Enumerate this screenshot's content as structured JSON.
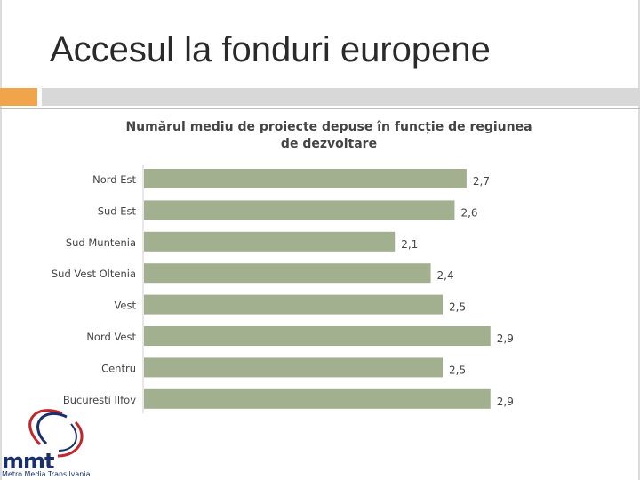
{
  "slide": {
    "title": "Accesul la fonduri europene"
  },
  "colors": {
    "accent_orange": "#f0a54a",
    "accent_gray": "#d8d8d8",
    "bar": "#a2b08f",
    "logo_red": "#c0272d",
    "logo_blue": "#1a2f6d"
  },
  "logo": {
    "name": "mmt",
    "subtitle": "Metro Media Transilvania"
  },
  "chart_data": {
    "type": "bar",
    "orientation": "horizontal",
    "title": "Numărul mediu de proiecte depuse în funcție de regiunea de dezvoltare",
    "categories": [
      "Nord Est",
      "Sud Est",
      "Sud Muntenia",
      "Sud Vest Oltenia",
      "Vest",
      "Nord Vest",
      "Centru",
      "Bucuresti Ilfov"
    ],
    "values": [
      2.7,
      2.6,
      2.1,
      2.4,
      2.5,
      2.9,
      2.5,
      2.9
    ],
    "value_labels": [
      "2,7",
      "2,6",
      "2,1",
      "2,4",
      "2,5",
      "2,9",
      "2,5",
      "2,9"
    ],
    "xlim": [
      0,
      3
    ],
    "grid": false,
    "legend": "none"
  }
}
